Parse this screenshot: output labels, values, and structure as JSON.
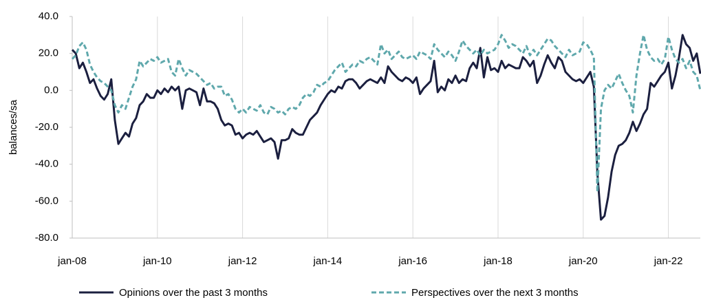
{
  "chart_data": {
    "type": "line",
    "ylabel": "balances/sa",
    "categories": [
      "jan-08",
      null,
      null,
      null,
      null,
      null,
      null,
      null,
      null,
      null,
      null,
      null,
      null,
      null,
      null,
      null,
      null,
      null,
      null,
      null,
      null,
      null,
      null,
      null,
      "jan-10",
      null,
      null,
      null,
      null,
      null,
      null,
      null,
      null,
      null,
      null,
      null,
      null,
      null,
      null,
      null,
      null,
      null,
      null,
      null,
      null,
      null,
      null,
      null,
      "jan-12",
      null,
      null,
      null,
      null,
      null,
      null,
      null,
      null,
      null,
      null,
      null,
      null,
      null,
      null,
      null,
      null,
      null,
      null,
      null,
      null,
      null,
      null,
      null,
      "jan-14",
      null,
      null,
      null,
      null,
      null,
      null,
      null,
      null,
      null,
      null,
      null,
      null,
      null,
      null,
      null,
      null,
      null,
      null,
      null,
      null,
      null,
      null,
      null,
      "jan-16",
      null,
      null,
      null,
      null,
      null,
      null,
      null,
      null,
      null,
      null,
      null,
      null,
      null,
      null,
      null,
      null,
      null,
      null,
      null,
      null,
      null,
      null,
      null,
      "jan-18",
      null,
      null,
      null,
      null,
      null,
      null,
      null,
      null,
      null,
      null,
      null,
      null,
      null,
      null,
      null,
      null,
      null,
      null,
      null,
      null,
      null,
      null,
      null,
      "jan-20",
      null,
      null,
      null,
      null,
      null,
      null,
      null,
      null,
      null,
      null,
      null,
      null,
      null,
      null,
      null,
      null,
      null,
      null,
      null,
      null,
      null,
      null,
      null,
      "jan-22",
      null,
      null,
      null,
      null,
      null,
      null,
      null,
      null,
      null
    ],
    "series": [
      {
        "name": "Opinions over the past 3 months",
        "color": "#1b1f3f",
        "dash": false,
        "values": [
          22,
          20,
          12,
          15,
          10,
          4,
          6,
          1,
          -3,
          -5,
          -2,
          6,
          -16,
          -29,
          -26,
          -23,
          -25,
          -18,
          -15,
          -8,
          -6,
          -2,
          -4,
          -4,
          0,
          -2,
          1,
          -1,
          2,
          0,
          2,
          -10,
          0,
          1,
          0,
          -1,
          -8,
          1,
          -6,
          -6,
          -7,
          -10,
          -16,
          -19,
          -18,
          -19,
          -24,
          -23,
          -26,
          -24,
          -23,
          -24,
          -22,
          -25,
          -28,
          -27,
          -26,
          -28,
          -37,
          -27,
          -27,
          -26,
          -21,
          -23,
          -24,
          -24,
          -20,
          -16,
          -14,
          -12,
          -8,
          -5,
          -2,
          0,
          -1,
          2,
          1,
          5,
          6,
          6,
          4,
          1,
          3,
          5,
          6,
          5,
          4,
          7,
          4,
          13,
          10,
          8,
          6,
          5,
          7,
          6,
          4,
          7,
          -2,
          1,
          3,
          5,
          16,
          -1,
          2,
          0,
          6,
          4,
          8,
          4,
          6,
          5,
          12,
          15,
          12,
          23,
          7,
          18,
          11,
          12,
          10,
          16,
          12,
          14,
          13,
          12,
          12,
          18,
          16,
          13,
          16,
          4,
          8,
          14,
          19,
          15,
          12,
          18,
          16,
          10,
          8,
          6,
          5,
          6,
          4,
          7,
          10,
          2,
          -45,
          -70,
          -68,
          -58,
          -44,
          -35,
          -30,
          -29,
          -27,
          -23,
          -17,
          -22,
          -18,
          -13,
          -10,
          4,
          2,
          5,
          8,
          10,
          15,
          1,
          8,
          18,
          30,
          25,
          23,
          16,
          20,
          9
        ]
      },
      {
        "name": "Perspectives over the next 3 months",
        "color": "#5fa8ac",
        "dash": true,
        "values": [
          17,
          19,
          24,
          26,
          22,
          14,
          10,
          7,
          5,
          4,
          2,
          0,
          -8,
          -12,
          -8,
          -10,
          -4,
          2,
          6,
          16,
          13,
          15,
          17,
          16,
          18,
          15,
          16,
          17,
          10,
          8,
          17,
          12,
          8,
          11,
          10,
          9,
          7,
          5,
          3,
          4,
          1,
          2,
          2,
          -3,
          -2,
          -5,
          -10,
          -12,
          -10,
          -12,
          -9,
          -10,
          -11,
          -8,
          -12,
          -13,
          -9,
          -10,
          -12,
          -11,
          -13,
          -10,
          -9,
          -10,
          -8,
          -4,
          -2,
          -3,
          -1,
          3,
          2,
          4,
          5,
          8,
          11,
          13,
          15,
          10,
          12,
          14,
          13,
          16,
          15,
          17,
          18,
          16,
          14,
          25,
          20,
          22,
          17,
          19,
          21,
          18,
          17,
          18,
          19,
          17,
          21,
          20,
          19,
          17,
          25,
          22,
          20,
          18,
          21,
          19,
          16,
          21,
          27,
          24,
          22,
          20,
          22,
          19,
          22,
          20,
          21,
          22,
          25,
          30,
          27,
          23,
          25,
          24,
          22,
          20,
          24,
          19,
          22,
          19,
          22,
          25,
          28,
          27,
          24,
          22,
          20,
          18,
          22,
          19,
          20,
          21,
          26,
          25,
          22,
          18,
          -55,
          -10,
          0,
          3,
          1,
          5,
          9,
          4,
          0,
          -3,
          -12,
          8,
          20,
          30,
          22,
          18,
          16,
          17,
          14,
          17,
          29,
          22,
          17,
          15,
          17,
          12,
          16,
          10,
          8,
          0
        ]
      }
    ],
    "ylim": [
      -80,
      40
    ],
    "yticks": [
      {
        "value": -80,
        "label": "-80.0"
      },
      {
        "value": -60,
        "label": "-60.0"
      },
      {
        "value": -40,
        "label": "-40.0"
      },
      {
        "value": -20,
        "label": "-20.0"
      },
      {
        "value": 0,
        "label": "0.0"
      },
      {
        "value": 20,
        "label": "20.0"
      },
      {
        "value": 40,
        "label": "40.0"
      }
    ],
    "grid": true,
    "legend": "bottom"
  }
}
